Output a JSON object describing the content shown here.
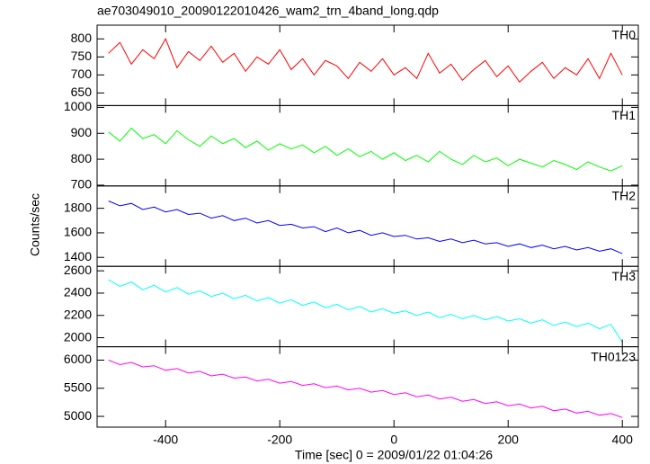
{
  "title": "ae703049010_20090122010426_wam2_trn_4band_long.qdp",
  "xlabel": "Time [sec] 0 = 2009/01/22 01:04:26",
  "ylabel": "Counts/sec",
  "chart_data": [
    {
      "type": "line",
      "xlim": [
        -520,
        428
      ],
      "xticks": [
        -400,
        -200,
        0,
        200,
        400
      ],
      "ylim": [
        615,
        838
      ],
      "yticks": [
        650,
        700,
        750,
        800
      ],
      "x": [
        -500,
        -480,
        -460,
        -440,
        -420,
        -400,
        -380,
        -360,
        -340,
        -320,
        -300,
        -280,
        -260,
        -240,
        -220,
        -200,
        -180,
        -160,
        -140,
        -120,
        -100,
        -80,
        -60,
        -40,
        -20,
        0,
        20,
        40,
        60,
        80,
        100,
        120,
        140,
        160,
        180,
        200,
        220,
        240,
        260,
        280,
        300,
        320,
        340,
        360,
        380,
        400
      ],
      "series": [
        {
          "name": "TH0",
          "color": "#ff0000",
          "values": [
            760,
            790,
            730,
            770,
            745,
            800,
            720,
            765,
            740,
            780,
            735,
            760,
            710,
            750,
            730,
            770,
            715,
            745,
            700,
            740,
            725,
            690,
            735,
            710,
            745,
            700,
            720,
            690,
            760,
            705,
            730,
            685,
            715,
            740,
            695,
            725,
            680,
            710,
            735,
            690,
            720,
            700,
            745,
            690,
            760,
            700
          ]
        }
      ]
    },
    {
      "type": "line",
      "xlim": [
        -520,
        428
      ],
      "xticks": [
        -400,
        -200,
        0,
        200,
        400
      ],
      "ylim": [
        697,
        1007
      ],
      "yticks": [
        700,
        800,
        900,
        1000
      ],
      "x": [
        -500,
        -480,
        -460,
        -440,
        -420,
        -400,
        -380,
        -360,
        -340,
        -320,
        -300,
        -280,
        -260,
        -240,
        -220,
        -200,
        -180,
        -160,
        -140,
        -120,
        -100,
        -80,
        -60,
        -40,
        -20,
        0,
        20,
        40,
        60,
        80,
        100,
        120,
        140,
        160,
        180,
        200,
        220,
        240,
        260,
        280,
        300,
        320,
        340,
        360,
        380,
        400
      ],
      "series": [
        {
          "name": "TH1",
          "color": "#00ff00",
          "values": [
            905,
            870,
            920,
            880,
            895,
            860,
            910,
            875,
            850,
            890,
            860,
            880,
            845,
            870,
            835,
            860,
            840,
            855,
            825,
            850,
            815,
            840,
            810,
            830,
            800,
            825,
            795,
            815,
            790,
            830,
            800,
            780,
            815,
            790,
            805,
            775,
            800,
            785,
            770,
            795,
            780,
            760,
            790,
            770,
            755,
            775
          ]
        }
      ]
    },
    {
      "type": "line",
      "xlim": [
        -520,
        428
      ],
      "xticks": [
        -400,
        -200,
        0,
        200,
        400
      ],
      "ylim": [
        1327,
        1982
      ],
      "yticks": [
        1400,
        1600,
        1800
      ],
      "x": [
        -500,
        -480,
        -460,
        -440,
        -420,
        -400,
        -380,
        -360,
        -340,
        -320,
        -300,
        -280,
        -260,
        -240,
        -220,
        -200,
        -180,
        -160,
        -140,
        -120,
        -100,
        -80,
        -60,
        -40,
        -20,
        0,
        20,
        40,
        60,
        80,
        100,
        120,
        140,
        160,
        180,
        200,
        220,
        240,
        260,
        280,
        300,
        320,
        340,
        360,
        380,
        400
      ],
      "series": [
        {
          "name": "TH2",
          "color": "#0000ff",
          "values": [
            1860,
            1820,
            1840,
            1790,
            1810,
            1770,
            1790,
            1750,
            1760,
            1720,
            1740,
            1700,
            1720,
            1680,
            1700,
            1660,
            1670,
            1640,
            1650,
            1610,
            1640,
            1600,
            1620,
            1580,
            1600,
            1570,
            1580,
            1550,
            1560,
            1530,
            1550,
            1520,
            1540,
            1510,
            1520,
            1490,
            1510,
            1480,
            1500,
            1470,
            1490,
            1460,
            1480,
            1450,
            1470,
            1430
          ]
        }
      ]
    },
    {
      "type": "line",
      "xlim": [
        -520,
        428
      ],
      "xticks": [
        -400,
        -200,
        0,
        200,
        400
      ],
      "ylim": [
        1919,
        2640
      ],
      "yticks": [
        2000,
        2200,
        2400,
        2600
      ],
      "x": [
        -500,
        -480,
        -460,
        -440,
        -420,
        -400,
        -380,
        -360,
        -340,
        -320,
        -300,
        -280,
        -260,
        -240,
        -220,
        -200,
        -180,
        -160,
        -140,
        -120,
        -100,
        -80,
        -60,
        -40,
        -20,
        0,
        20,
        40,
        60,
        80,
        100,
        120,
        140,
        160,
        180,
        200,
        220,
        240,
        260,
        280,
        300,
        320,
        340,
        360,
        380,
        400
      ],
      "series": [
        {
          "name": "TH3",
          "color": "#00ffff",
          "values": [
            2520,
            2460,
            2500,
            2430,
            2470,
            2410,
            2450,
            2390,
            2420,
            2370,
            2400,
            2350,
            2380,
            2330,
            2360,
            2310,
            2340,
            2290,
            2320,
            2270,
            2300,
            2250,
            2280,
            2230,
            2260,
            2220,
            2240,
            2200,
            2230,
            2180,
            2210,
            2170,
            2200,
            2160,
            2190,
            2150,
            2170,
            2130,
            2160,
            2110,
            2140,
            2100,
            2130,
            2080,
            2120,
            1960
          ]
        }
      ]
    },
    {
      "type": "line",
      "xlim": [
        -520,
        428
      ],
      "xticks": [
        -400,
        -200,
        0,
        200,
        400
      ],
      "ylim": [
        4809,
        6238
      ],
      "yticks": [
        5000,
        5500,
        6000
      ],
      "x": [
        -500,
        -480,
        -460,
        -440,
        -420,
        -400,
        -380,
        -360,
        -340,
        -320,
        -300,
        -280,
        -260,
        -240,
        -220,
        -200,
        -180,
        -160,
        -140,
        -120,
        -100,
        -80,
        -60,
        -40,
        -20,
        0,
        20,
        40,
        60,
        80,
        100,
        120,
        140,
        160,
        180,
        200,
        220,
        240,
        260,
        280,
        300,
        320,
        340,
        360,
        380,
        400
      ],
      "series": [
        {
          "name": "TH0123",
          "color": "#ff00ff",
          "values": [
            6000,
            5920,
            5960,
            5880,
            5900,
            5820,
            5850,
            5770,
            5800,
            5720,
            5750,
            5680,
            5700,
            5630,
            5660,
            5590,
            5620,
            5550,
            5580,
            5510,
            5540,
            5470,
            5500,
            5430,
            5460,
            5390,
            5420,
            5350,
            5380,
            5310,
            5340,
            5270,
            5300,
            5230,
            5260,
            5190,
            5220,
            5150,
            5180,
            5100,
            5130,
            5060,
            5090,
            5020,
            5050,
            4980
          ]
        }
      ]
    }
  ]
}
